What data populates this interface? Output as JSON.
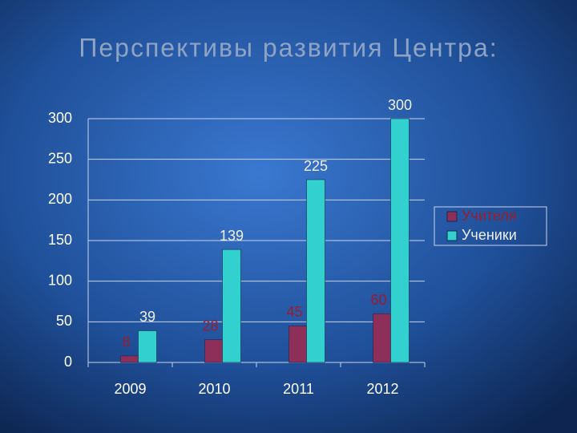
{
  "chart_data": {
    "type": "bar",
    "title": "Перспективы развития Центра:",
    "categories": [
      "2009",
      "2010",
      "2011",
      "2012"
    ],
    "series": [
      {
        "name": "Учителя",
        "color": "#8e2f5a",
        "values": [
          8,
          28,
          45,
          60
        ]
      },
      {
        "name": "Ученики",
        "color": "#33d0d0",
        "values": [
          39,
          139,
          225,
          300
        ]
      }
    ],
    "ylim": [
      0,
      300
    ],
    "yticks": [
      0,
      50,
      100,
      150,
      200,
      250,
      300
    ],
    "grid": true,
    "legend": "right"
  }
}
